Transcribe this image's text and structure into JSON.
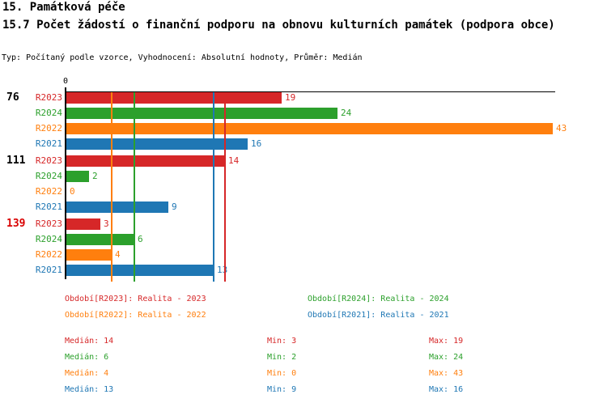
{
  "header": {
    "title_line1": "15. Památková péče",
    "title_line2": "15.7 Počet žádostí o finanční podporu na obnovu kulturních památek (podpora obce)",
    "meta_line": "Typ: Počítaný podle vzorce, Vyhodnocení: Absolutní hodnoty, Průměr: Medián"
  },
  "chart_data": {
    "type": "bar",
    "orientation": "horizontal",
    "title": "15.7 Počet žádostí o finanční podporu na obnovu kulturních památek (podpora obce)",
    "xlim": [
      0,
      43.3
    ],
    "origin_label": "0",
    "grid": "median-lines-only",
    "axis_color": "#000000",
    "series_order": [
      "R2023",
      "R2024",
      "R2022",
      "R2021"
    ],
    "series_colors": {
      "R2023": "#d62728",
      "R2024": "#2ca02c",
      "R2022": "#ff7f0e",
      "R2021": "#1f77b4"
    },
    "groups": [
      {
        "label": "76",
        "label_color": "#000000",
        "values": {
          "R2023": 19,
          "R2024": 24,
          "R2022": 43,
          "R2021": 16
        }
      },
      {
        "label": "111",
        "label_color": "#000000",
        "values": {
          "R2023": 14,
          "R2024": 2,
          "R2022": 0,
          "R2021": 9
        }
      },
      {
        "label": "139",
        "label_color": "#d90000",
        "values": {
          "R2023": 3,
          "R2024": 6,
          "R2022": 4,
          "R2021": 13
        }
      }
    ],
    "median_lines": [
      {
        "series": "R2022",
        "value": 4
      },
      {
        "series": "R2024",
        "value": 6
      },
      {
        "series": "R2021",
        "value": 13
      },
      {
        "series": "R2023",
        "value": 14
      }
    ]
  },
  "legend": {
    "rows": [
      [
        {
          "series": "R2023",
          "text": "Období[R2023]: Realita - 2023"
        },
        {
          "series": "R2024",
          "text": "Období[R2024]: Realita - 2024"
        }
      ],
      [
        {
          "series": "R2022",
          "text": "Období[R2022]: Realita - 2022"
        },
        {
          "series": "R2021",
          "text": "Období[R2021]: Realita - 2021"
        }
      ]
    ]
  },
  "stats": {
    "labels": {
      "median": "Medián",
      "min": "Min",
      "max": "Max"
    },
    "rows": [
      {
        "series": "R2023",
        "median": 14,
        "min": 3,
        "max": 19
      },
      {
        "series": "R2024",
        "median": 6,
        "min": 2,
        "max": 24
      },
      {
        "series": "R2022",
        "median": 4,
        "min": 0,
        "max": 43
      },
      {
        "series": "R2021",
        "median": 13,
        "min": 9,
        "max": 16
      }
    ]
  }
}
